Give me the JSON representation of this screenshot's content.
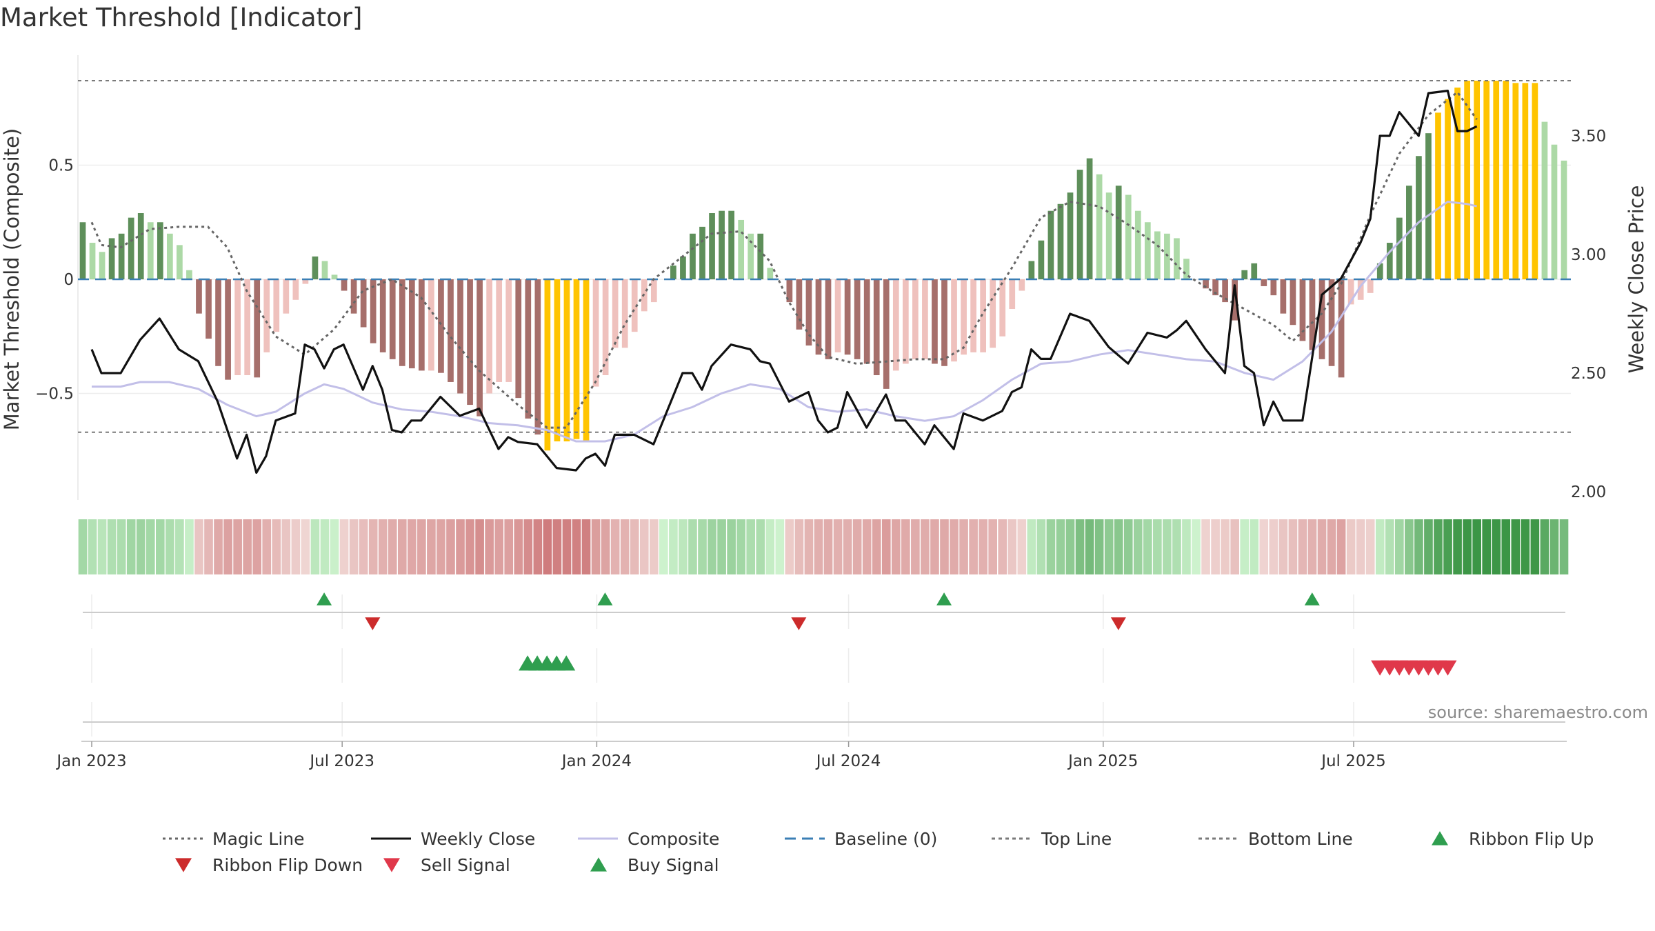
{
  "chart_data": {
    "type": "bar",
    "title": "Market Threshold [Indicator]",
    "ylabel_left": "Market Threshold (Composite)",
    "ylabel_right": "Weekly Close Price",
    "source": "source: sharemaestro.com",
    "left_axis": {
      "range": [
        -0.97,
        0.97
      ],
      "ticks": [
        0.5,
        0,
        -0.5
      ],
      "tick_labels": [
        "0.5",
        "0",
        "−0.5"
      ]
    },
    "right_axis": {
      "range": [
        2.0,
        3.9
      ],
      "ticks": [
        2.0,
        2.5,
        3.0,
        3.5
      ],
      "tick_labels": [
        "2.00",
        "2.50",
        "3.00",
        "3.50"
      ]
    },
    "x_axis": {
      "start": "2023-01-01",
      "end": "2025-10-01",
      "ticks": [
        "2023-01-01",
        "2023-07-01",
        "2024-01-01",
        "2024-07-01",
        "2025-01-01",
        "2025-07-01"
      ],
      "tick_labels": [
        "Jan 2023",
        "Jul 2023",
        "Jan 2024",
        "Jul 2024",
        "Jan 2025",
        "Jul 2025"
      ]
    },
    "threshold_lines": {
      "top": 0.87,
      "bottom": -0.67,
      "baseline": 0
    },
    "composite_bar_values": [
      0.25,
      0.16,
      0.12,
      0.18,
      0.2,
      0.27,
      0.29,
      0.25,
      0.25,
      0.2,
      0.15,
      0.04,
      -0.15,
      -0.26,
      -0.38,
      -0.44,
      -0.42,
      -0.42,
      -0.43,
      -0.32,
      -0.23,
      -0.15,
      -0.09,
      -0.02,
      0.1,
      0.08,
      0.02,
      -0.05,
      -0.15,
      -0.21,
      -0.28,
      -0.32,
      -0.35,
      -0.38,
      -0.39,
      -0.4,
      -0.4,
      -0.41,
      -0.45,
      -0.5,
      -0.55,
      -0.6,
      -0.5,
      -0.45,
      -0.45,
      -0.52,
      -0.61,
      -0.68,
      -0.75,
      -0.71,
      -0.71,
      -0.7,
      -0.71,
      -0.47,
      -0.42,
      -0.3,
      -0.3,
      -0.23,
      -0.14,
      -0.1,
      0,
      0.06,
      0.1,
      0.2,
      0.23,
      0.29,
      0.3,
      0.3,
      0.26,
      0.2,
      0.2,
      0.05,
      0,
      -0.1,
      -0.22,
      -0.29,
      -0.33,
      -0.35,
      -0.32,
      -0.33,
      -0.35,
      -0.37,
      -0.42,
      -0.48,
      -0.4,
      -0.37,
      -0.35,
      -0.35,
      -0.37,
      -0.38,
      -0.36,
      -0.33,
      -0.32,
      -0.32,
      -0.3,
      -0.25,
      -0.13,
      -0.05,
      0.08,
      0.17,
      0.3,
      0.33,
      0.38,
      0.48,
      0.53,
      0.46,
      0.38,
      0.41,
      0.37,
      0.3,
      0.25,
      0.21,
      0.2,
      0.18,
      0.09,
      0,
      -0.04,
      -0.07,
      -0.1,
      -0.18,
      0.04,
      0.07,
      -0.03,
      -0.07,
      -0.15,
      -0.2,
      -0.27,
      -0.31,
      -0.35,
      -0.38,
      -0.43,
      -0.11,
      -0.09,
      -0.06,
      0.07,
      0.16,
      0.27,
      0.41,
      0.54,
      0.64,
      0.73,
      0.79,
      0.84,
      0.87,
      0.87,
      0.87,
      0.87,
      0.87,
      0.86,
      0.86,
      0.86,
      0.69,
      0.59,
      0.52
    ],
    "magic_line_x": [
      "2023-01-01",
      "2023-01-08",
      "2023-01-22",
      "2023-02-12",
      "2023-03-05",
      "2023-03-26",
      "2023-04-09",
      "2023-04-23",
      "2023-05-14",
      "2023-06-04",
      "2023-06-25",
      "2023-07-16",
      "2023-08-06",
      "2023-08-27",
      "2023-09-17",
      "2023-10-08",
      "2023-11-05",
      "2023-11-26",
      "2023-12-10",
      "2023-12-31",
      "2024-01-21",
      "2024-02-11",
      "2024-03-03",
      "2024-03-24",
      "2024-04-14",
      "2024-05-05",
      "2024-05-19",
      "2024-06-02",
      "2024-06-16",
      "2024-07-07",
      "2024-07-28",
      "2024-08-18",
      "2024-09-08",
      "2024-09-22",
      "2024-10-06",
      "2024-10-27",
      "2024-11-17",
      "2024-12-08",
      "2024-12-29",
      "2025-01-19",
      "2025-02-09",
      "2025-03-02",
      "2025-03-23",
      "2025-04-13",
      "2025-05-04",
      "2025-05-18",
      "2025-06-08",
      "2025-06-22",
      "2025-07-13",
      "2025-08-03",
      "2025-08-24",
      "2025-09-14",
      "2025-09-28"
    ],
    "magic_line": [
      0.25,
      0.15,
      0.14,
      0.22,
      0.23,
      0.23,
      0.14,
      -0.05,
      -0.25,
      -0.33,
      -0.22,
      -0.05,
      0.0,
      -0.08,
      -0.25,
      -0.4,
      -0.55,
      -0.65,
      -0.65,
      -0.45,
      -0.2,
      0.0,
      0.1,
      0.2,
      0.21,
      0.08,
      -0.1,
      -0.24,
      -0.34,
      -0.37,
      -0.36,
      -0.35,
      -0.35,
      -0.3,
      -0.15,
      0.05,
      0.27,
      0.34,
      0.32,
      0.24,
      0.15,
      0.02,
      -0.06,
      -0.13,
      -0.2,
      -0.27,
      -0.15,
      -0.02,
      0.28,
      0.55,
      0.72,
      0.82,
      0.7
    ],
    "weekly_close_x": [
      "2023-01-01",
      "2023-01-08",
      "2023-01-22",
      "2023-02-05",
      "2023-02-19",
      "2023-03-05",
      "2023-03-19",
      "2023-04-02",
      "2023-04-16",
      "2023-04-23",
      "2023-04-30",
      "2023-05-07",
      "2023-05-14",
      "2023-05-28",
      "2023-06-04",
      "2023-06-11",
      "2023-06-18",
      "2023-06-25",
      "2023-07-02",
      "2023-07-16",
      "2023-07-23",
      "2023-07-30",
      "2023-08-06",
      "2023-08-13",
      "2023-08-20",
      "2023-08-27",
      "2023-09-10",
      "2023-09-24",
      "2023-10-08",
      "2023-10-22",
      "2023-10-29",
      "2023-11-05",
      "2023-11-19",
      "2023-12-03",
      "2023-12-17",
      "2023-12-24",
      "2023-12-31",
      "2024-01-07",
      "2024-01-14",
      "2024-01-28",
      "2024-02-11",
      "2024-02-25",
      "2024-03-03",
      "2024-03-10",
      "2024-03-17",
      "2024-03-24",
      "2024-04-07",
      "2024-04-21",
      "2024-04-28",
      "2024-05-05",
      "2024-05-19",
      "2024-06-02",
      "2024-06-09",
      "2024-06-16",
      "2024-06-23",
      "2024-06-30",
      "2024-07-14",
      "2024-07-28",
      "2024-08-04",
      "2024-08-11",
      "2024-08-18",
      "2024-08-25",
      "2024-09-01",
      "2024-09-15",
      "2024-09-22",
      "2024-10-06",
      "2024-10-20",
      "2024-10-27",
      "2024-11-03",
      "2024-11-10",
      "2024-11-17",
      "2024-11-24",
      "2024-12-08",
      "2024-12-22",
      "2025-01-05",
      "2025-01-19",
      "2025-02-02",
      "2025-02-16",
      "2025-02-23",
      "2025-03-02",
      "2025-03-16",
      "2025-03-30",
      "2025-04-06",
      "2025-04-13",
      "2025-04-20",
      "2025-04-27",
      "2025-05-04",
      "2025-05-11",
      "2025-05-25",
      "2025-06-08",
      "2025-06-22",
      "2025-07-06",
      "2025-07-13",
      "2025-07-20",
      "2025-07-27",
      "2025-08-03",
      "2025-08-17",
      "2025-08-24",
      "2025-09-07",
      "2025-09-14",
      "2025-09-21",
      "2025-09-28"
    ],
    "weekly_close": [
      2.6,
      2.5,
      2.5,
      2.64,
      2.73,
      2.6,
      2.55,
      2.38,
      2.14,
      2.24,
      2.08,
      2.15,
      2.3,
      2.33,
      2.62,
      2.6,
      2.52,
      2.6,
      2.62,
      2.43,
      2.53,
      2.43,
      2.26,
      2.25,
      2.3,
      2.3,
      2.4,
      2.32,
      2.35,
      2.18,
      2.23,
      2.21,
      2.2,
      2.1,
      2.09,
      2.14,
      2.16,
      2.11,
      2.24,
      2.24,
      2.2,
      2.4,
      2.5,
      2.5,
      2.43,
      2.53,
      2.62,
      2.6,
      2.55,
      2.54,
      2.38,
      2.42,
      2.3,
      2.25,
      2.27,
      2.42,
      2.27,
      2.41,
      2.3,
      2.3,
      2.25,
      2.2,
      2.28,
      2.18,
      2.33,
      2.3,
      2.34,
      2.42,
      2.44,
      2.6,
      2.56,
      2.56,
      2.75,
      2.72,
      2.61,
      2.54,
      2.67,
      2.65,
      2.68,
      2.72,
      2.6,
      2.5,
      2.87,
      2.53,
      2.5,
      2.28,
      2.38,
      2.3,
      2.3,
      2.83,
      2.9,
      3.05,
      3.15,
      3.5,
      3.5,
      3.6,
      3.5,
      3.68,
      3.69,
      3.52,
      3.52,
      3.54
    ],
    "weekly_close_ticks_left_units": null,
    "composite_line_x": [
      "2023-01-01",
      "2023-01-22",
      "2023-02-05",
      "2023-02-26",
      "2023-03-19",
      "2023-04-09",
      "2023-04-30",
      "2023-05-14",
      "2023-06-04",
      "2023-06-18",
      "2023-07-02",
      "2023-07-23",
      "2023-08-13",
      "2023-09-03",
      "2023-09-24",
      "2023-10-15",
      "2023-11-05",
      "2023-11-26",
      "2023-12-17",
      "2024-01-07",
      "2024-01-28",
      "2024-02-18",
      "2024-03-10",
      "2024-03-31",
      "2024-04-21",
      "2024-05-12",
      "2024-06-02",
      "2024-06-23",
      "2024-07-14",
      "2024-08-04",
      "2024-08-25",
      "2024-09-15",
      "2024-10-06",
      "2024-10-27",
      "2024-11-17",
      "2024-12-08",
      "2024-12-29",
      "2025-01-19",
      "2025-02-09",
      "2025-03-02",
      "2025-03-23",
      "2025-04-13",
      "2025-05-04",
      "2025-05-25",
      "2025-06-15",
      "2025-07-06",
      "2025-07-27",
      "2025-08-17",
      "2025-09-07",
      "2025-09-21",
      "2025-09-28"
    ],
    "composite_line": [
      -0.47,
      -0.47,
      -0.45,
      -0.45,
      -0.48,
      -0.55,
      -0.6,
      -0.58,
      -0.5,
      -0.46,
      -0.48,
      -0.54,
      -0.57,
      -0.58,
      -0.6,
      -0.63,
      -0.64,
      -0.66,
      -0.71,
      -0.71,
      -0.68,
      -0.6,
      -0.56,
      -0.5,
      -0.46,
      -0.48,
      -0.56,
      -0.58,
      -0.57,
      -0.6,
      -0.62,
      -0.6,
      -0.53,
      -0.44,
      -0.37,
      -0.36,
      -0.33,
      -0.31,
      -0.33,
      -0.35,
      -0.36,
      -0.41,
      -0.44,
      -0.36,
      -0.23,
      -0.03,
      0.12,
      0.25,
      0.34,
      0.33,
      0.32
    ],
    "ribbon_tiers": [
      2,
      1,
      1,
      1,
      1,
      1,
      1,
      1,
      1,
      1,
      1,
      1,
      1,
      1,
      1,
      1,
      1,
      1,
      1,
      1,
      1,
      1,
      1,
      1,
      1,
      1,
      1,
      1,
      1,
      1,
      1,
      1,
      1,
      1,
      1,
      1,
      1,
      1,
      1,
      1,
      1,
      1,
      1,
      1,
      1,
      1,
      1,
      1,
      1,
      1,
      1,
      1,
      1,
      1,
      1,
      1,
      1,
      1,
      1,
      1,
      1,
      1,
      1,
      1,
      1,
      1,
      1,
      1,
      1,
      1,
      1,
      1,
      1,
      1,
      1,
      1,
      1,
      1,
      1,
      1,
      1,
      1,
      1,
      1,
      1,
      1,
      1,
      1,
      1,
      1,
      1,
      1,
      1,
      1,
      1,
      1,
      1,
      1,
      1,
      1,
      1,
      1,
      1,
      1,
      1,
      1,
      1,
      1,
      1,
      1,
      1,
      1,
      1,
      1,
      1,
      1,
      1,
      1,
      1,
      1,
      1,
      1,
      1,
      1,
      1,
      1,
      1,
      1,
      1,
      1,
      1,
      1,
      1,
      1,
      1,
      1,
      1,
      1,
      1,
      1,
      1,
      1,
      1,
      1,
      1,
      1,
      1,
      1,
      1,
      1
    ],
    "ribbon_flip_up": [
      "2023-06-18",
      "2024-01-07",
      "2024-09-08",
      "2025-06-01"
    ],
    "ribbon_flip_down": [
      "2023-07-23",
      "2024-05-26",
      "2025-01-12"
    ],
    "buy_signal": [
      "2023-11-12",
      "2023-11-19",
      "2023-11-26",
      "2023-12-03",
      "2023-12-10"
    ],
    "sell_signal": [
      "2025-07-20",
      "2025-07-27",
      "2025-08-03",
      "2025-08-10",
      "2025-08-17",
      "2025-08-24",
      "2025-08-31",
      "2025-09-07"
    ],
    "legend": [
      {
        "label": "Magic Line",
        "icon": "dotted-line"
      },
      {
        "label": "Weekly Close",
        "icon": "solid-line"
      },
      {
        "label": "Composite",
        "icon": "solid-line"
      },
      {
        "label": "Baseline (0)",
        "icon": "dashed-line"
      },
      {
        "label": "Top Line",
        "icon": "dashed-line"
      },
      {
        "label": "Bottom Line",
        "icon": "dashed-line"
      },
      {
        "label": "Ribbon Flip Up",
        "icon": "triangle-up"
      },
      {
        "label": "Ribbon Flip Down",
        "icon": "triangle-down"
      },
      {
        "label": "Sell Signal",
        "icon": "triangle-down"
      },
      {
        "label": "Buy Signal",
        "icon": "triangle-up"
      }
    ],
    "colors": {
      "bar_pos_strong": "#5e8f5a",
      "bar_pos_light": "#acd9a6",
      "bar_neg_strong": "#a66f6b",
      "bar_neg_light": "#efc1bd",
      "bar_extreme": "#ffc400",
      "magic_line": "#666666",
      "weekly_close": "#111111",
      "composite": "#c2bfe8",
      "baseline": "#3b7fb5",
      "threshold": "#7a7a7a",
      "flip_up": "#2f9e4f",
      "flip_down": "#cc2b2b",
      "sell": "#e0384a",
      "buy": "#2f9e4f"
    }
  }
}
